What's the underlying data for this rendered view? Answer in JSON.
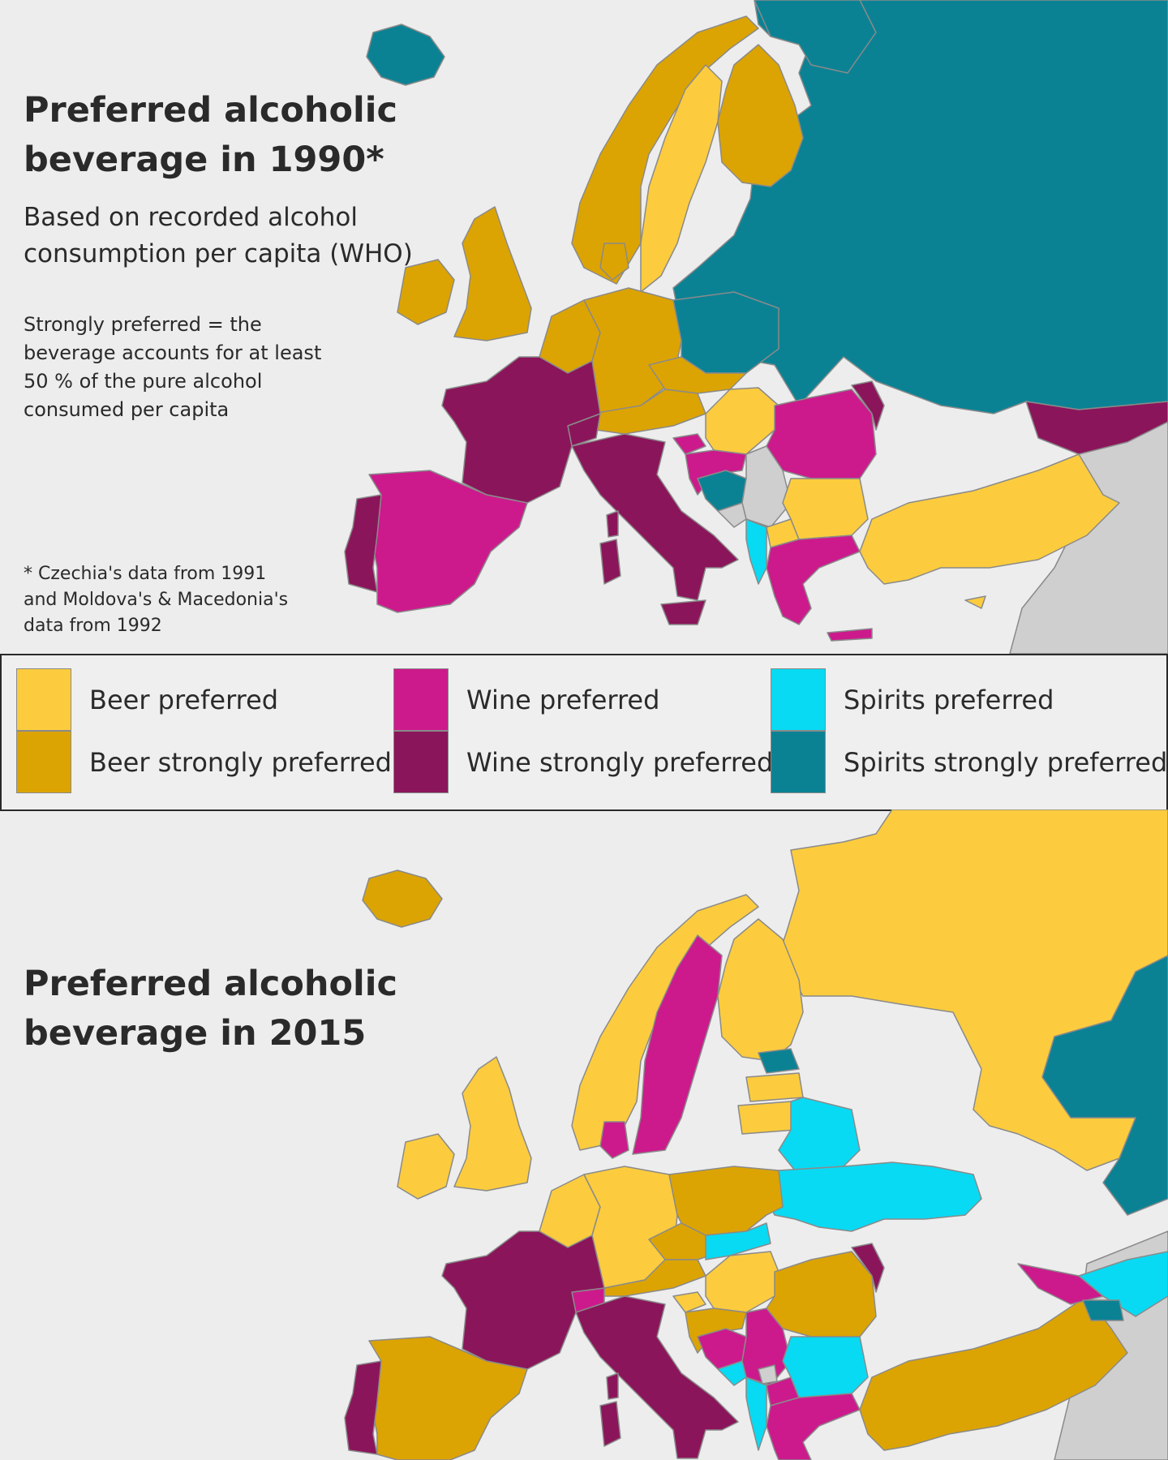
{
  "map_1990": {
    "title_line1": "Preferred alcoholic",
    "title_line2": "beverage in 1990*",
    "subtitle_line1": "Based on recorded alcohol",
    "subtitle_line2": "consumption per capita (WHO)",
    "note_lines": [
      "Strongly preferred = the",
      "beverage accounts for at least",
      "50 % of the pure alcohol",
      "consumed per capita"
    ],
    "footnote_lines": [
      "* Czechia's data from 1991",
      "and Moldova's & Macedonia's",
      "data from 1992"
    ]
  },
  "map_2015": {
    "title_line1": "Preferred alcoholic",
    "title_line2": "beverage in 2015"
  },
  "legend": {
    "beer_preferred": "Beer preferred",
    "beer_strongly": "Beer strongly preferred",
    "wine_preferred": "Wine preferred",
    "wine_strongly": "Wine strongly preferred",
    "spirits_preferred": "Spirits preferred",
    "spirits_strongly": "Spirits strongly preferred"
  },
  "colors": {
    "beer_preferred": "#fccc3e",
    "beer_strongly": "#dca402",
    "wine_preferred": "#cc1a8c",
    "wine_strongly": "#8b155a",
    "spirits_preferred": "#08daf3",
    "spirits_strongly": "#0b8294",
    "no_data": "#cfcfcf",
    "sea": "#ededed"
  }
}
